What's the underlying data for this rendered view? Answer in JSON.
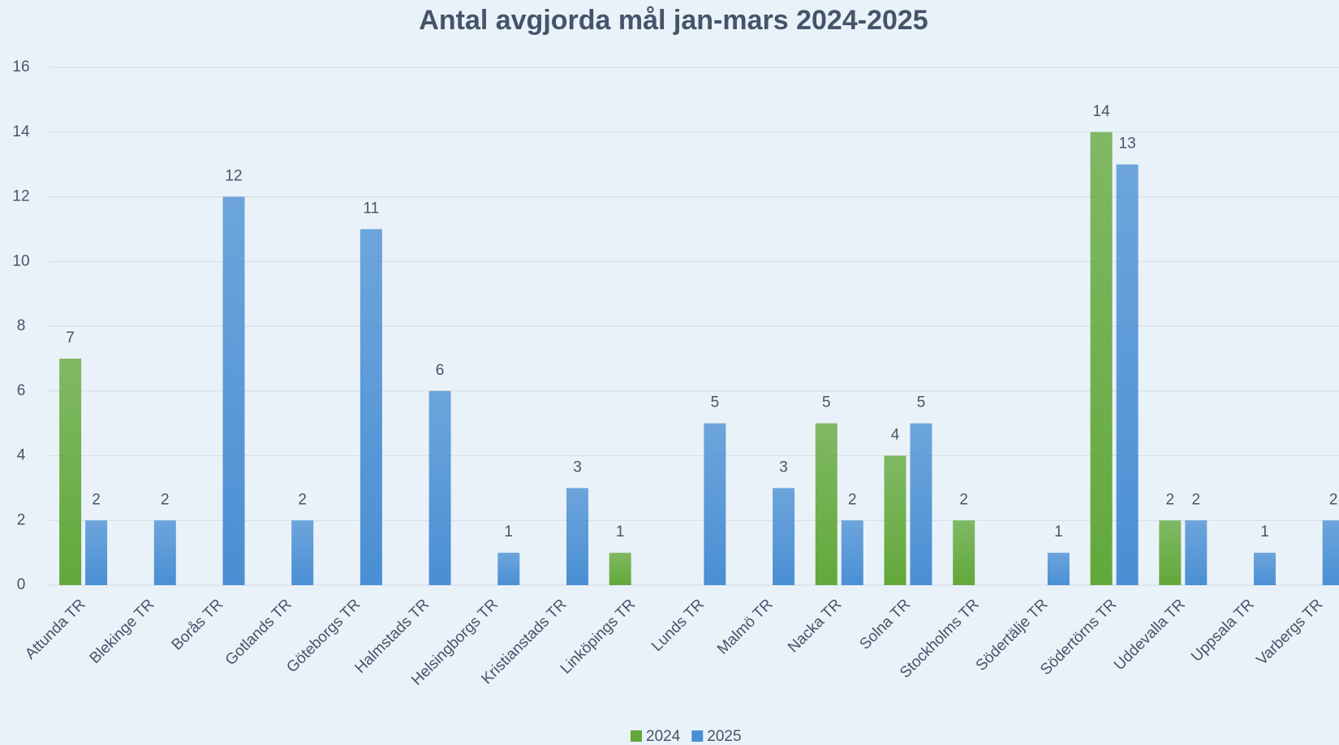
{
  "chart_data": {
    "type": "bar",
    "title": "Antal avgjorda mål jan-mars 2024-2025",
    "categories": [
      "Attunda TR",
      "Blekinge TR",
      "Borås TR",
      "Gotlands TR",
      "Göteborgs TR",
      "Halmstads TR",
      "Helsingborgs TR",
      "Kristianstads TR",
      "Linköpings TR",
      "Lunds TR",
      "Malmö TR",
      "Nacka TR",
      "Solna TR",
      "Stockholms TR",
      "Södertälje TR",
      "Södertörns TR",
      "Uddevalla TR",
      "Uppsala TR",
      "Varbergs TR"
    ],
    "series": [
      {
        "name": "2024",
        "color": "#62a83a",
        "values": [
          7,
          null,
          null,
          null,
          null,
          null,
          null,
          null,
          1,
          null,
          null,
          5,
          4,
          2,
          null,
          14,
          2,
          null,
          null
        ]
      },
      {
        "name": "2025",
        "color": "#4a8fd4",
        "values": [
          2,
          2,
          12,
          2,
          11,
          6,
          1,
          3,
          null,
          5,
          3,
          2,
          5,
          null,
          1,
          13,
          2,
          1,
          2
        ]
      }
    ],
    "ylim": [
      0,
      16
    ],
    "yticks": [
      0,
      2,
      4,
      6,
      8,
      10,
      12,
      14,
      16
    ],
    "grid": true,
    "legend": "bottom"
  }
}
